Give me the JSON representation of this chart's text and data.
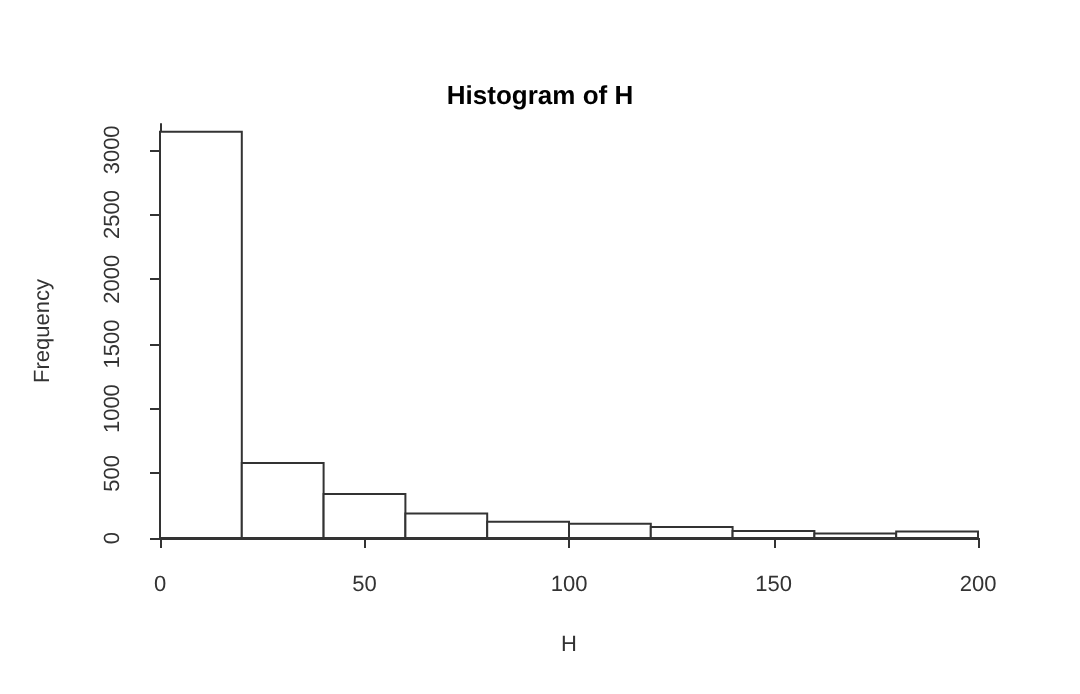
{
  "chart_data": {
    "type": "histogram",
    "title": "Histogram of H",
    "xlabel": "H",
    "ylabel": "Frequency",
    "bins": [
      0,
      20,
      40,
      60,
      80,
      100,
      120,
      140,
      160,
      180,
      200
    ],
    "values": [
      3140,
      580,
      340,
      190,
      125,
      110,
      85,
      55,
      35,
      50
    ],
    "color": "#ffffff",
    "xlim": [
      0,
      200
    ],
    "xticks": [
      0,
      50,
      100,
      150,
      200
    ],
    "ylim": [
      0,
      3200
    ],
    "yticks": [
      0,
      500,
      1000,
      1500,
      2000,
      2500,
      3000
    ],
    "grid": false
  }
}
